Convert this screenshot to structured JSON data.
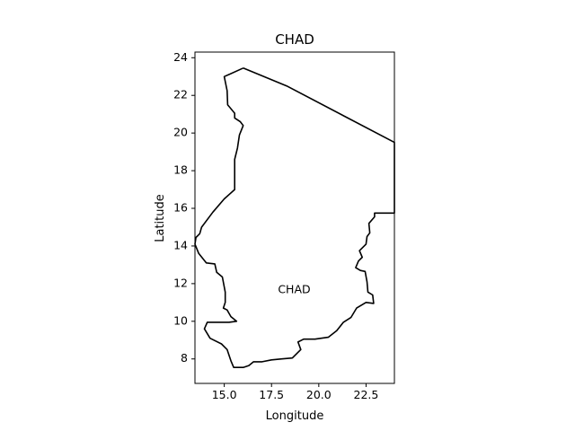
{
  "map": {
    "title": "CHAD",
    "xlabel": "Longitude",
    "ylabel": "Latitude",
    "region_label": "CHAD",
    "xlim": [
      13.45,
      24.0
    ],
    "ylim": [
      6.7,
      24.3
    ],
    "xticks": [
      15.0,
      17.5,
      20.0,
      22.5
    ],
    "xtick_labels": [
      "15.0",
      "17.5",
      "20.0",
      "22.5"
    ],
    "yticks": [
      8,
      10,
      12,
      14,
      16,
      18,
      20,
      22,
      24
    ],
    "ytick_labels": [
      "8",
      "10",
      "12",
      "14",
      "16",
      "18",
      "20",
      "22",
      "24"
    ],
    "region_label_position_lonlat": [
      18.7,
      11.65
    ],
    "boundary_color": "#000000",
    "boundary_lonlat": [
      [
        16.0,
        23.45
      ],
      [
        15.0,
        23.0
      ],
      [
        15.15,
        22.25
      ],
      [
        15.18,
        21.5
      ],
      [
        15.55,
        21.05
      ],
      [
        15.55,
        20.8
      ],
      [
        15.85,
        20.6
      ],
      [
        16.0,
        20.4
      ],
      [
        15.8,
        19.9
      ],
      [
        15.7,
        19.2
      ],
      [
        15.55,
        18.6
      ],
      [
        15.55,
        17.0
      ],
      [
        15.0,
        16.5
      ],
      [
        14.4,
        15.8
      ],
      [
        13.8,
        15.0
      ],
      [
        13.7,
        14.65
      ],
      [
        13.5,
        14.45
      ],
      [
        13.45,
        14.1
      ],
      [
        13.65,
        13.6
      ],
      [
        14.05,
        13.1
      ],
      [
        14.5,
        13.05
      ],
      [
        14.6,
        12.6
      ],
      [
        14.9,
        12.35
      ],
      [
        15.05,
        11.55
      ],
      [
        15.05,
        11.0
      ],
      [
        14.95,
        10.7
      ],
      [
        15.15,
        10.6
      ],
      [
        15.35,
        10.25
      ],
      [
        15.65,
        10.0
      ],
      [
        15.25,
        9.95
      ],
      [
        14.5,
        9.95
      ],
      [
        14.1,
        9.95
      ],
      [
        13.95,
        9.6
      ],
      [
        14.25,
        9.1
      ],
      [
        14.85,
        8.8
      ],
      [
        15.15,
        8.5
      ],
      [
        15.35,
        7.9
      ],
      [
        15.5,
        7.55
      ],
      [
        16.0,
        7.55
      ],
      [
        16.3,
        7.65
      ],
      [
        16.55,
        7.85
      ],
      [
        17.0,
        7.85
      ],
      [
        17.5,
        7.95
      ],
      [
        18.05,
        8.0
      ],
      [
        18.6,
        8.05
      ],
      [
        19.05,
        8.5
      ],
      [
        18.9,
        8.9
      ],
      [
        19.2,
        9.05
      ],
      [
        19.8,
        9.05
      ],
      [
        20.5,
        9.15
      ],
      [
        20.95,
        9.5
      ],
      [
        21.3,
        9.95
      ],
      [
        21.7,
        10.2
      ],
      [
        22.0,
        10.7
      ],
      [
        22.5,
        11.0
      ],
      [
        22.9,
        10.95
      ],
      [
        22.85,
        11.4
      ],
      [
        22.6,
        11.55
      ],
      [
        22.55,
        12.1
      ],
      [
        22.45,
        12.65
      ],
      [
        22.2,
        12.7
      ],
      [
        21.95,
        12.85
      ],
      [
        22.1,
        13.2
      ],
      [
        22.3,
        13.4
      ],
      [
        22.15,
        13.75
      ],
      [
        22.5,
        14.1
      ],
      [
        22.55,
        14.5
      ],
      [
        22.7,
        14.7
      ],
      [
        22.65,
        15.2
      ],
      [
        22.95,
        15.55
      ],
      [
        22.95,
        15.75
      ],
      [
        23.55,
        15.75
      ],
      [
        24.0,
        15.75
      ],
      [
        24.0,
        19.5
      ],
      [
        18.3,
        22.5
      ],
      [
        16.0,
        23.45
      ]
    ]
  }
}
